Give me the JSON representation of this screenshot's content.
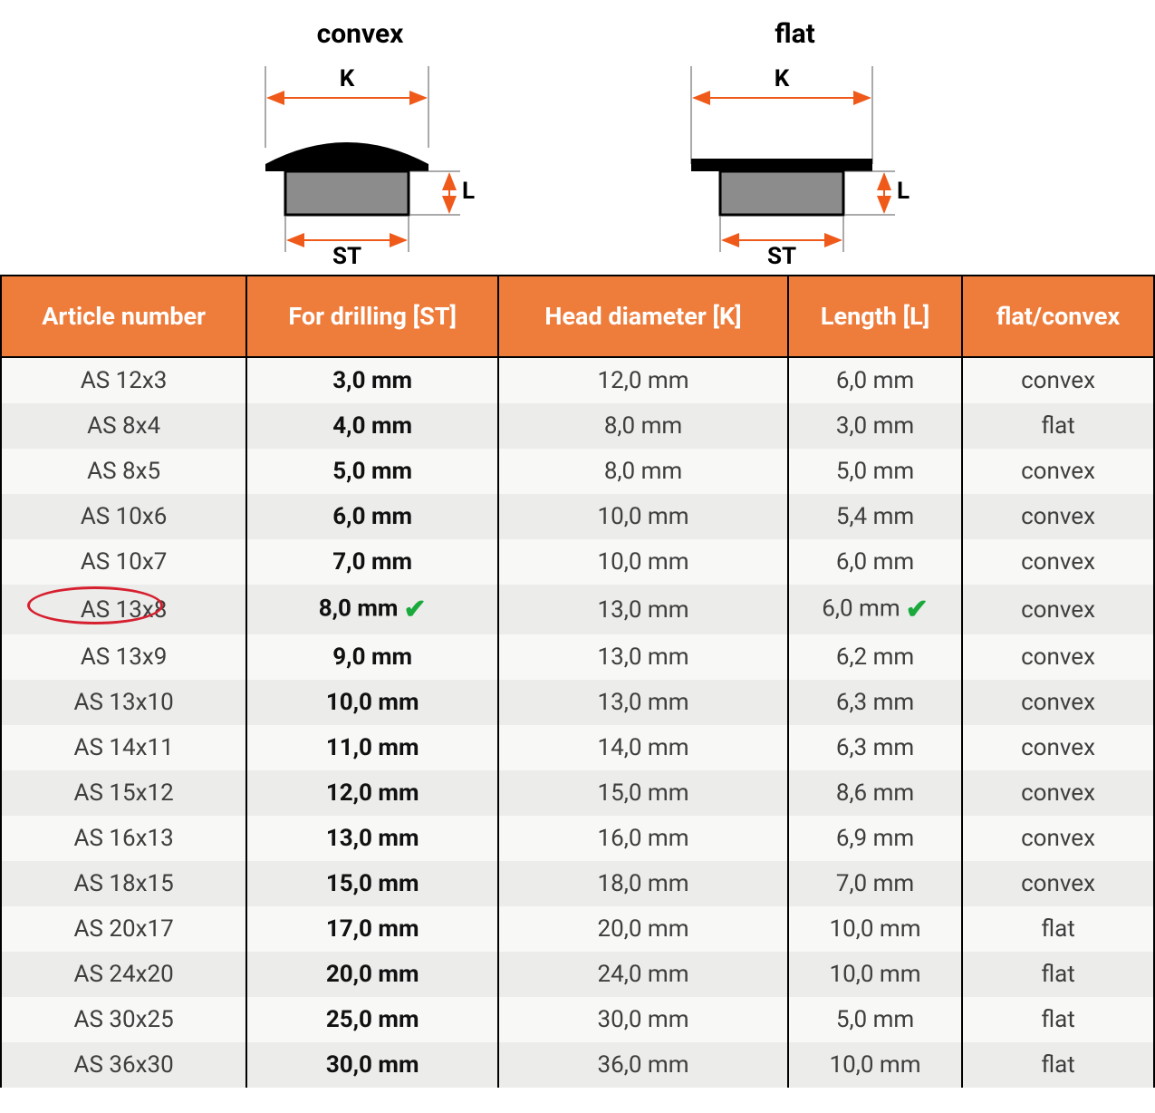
{
  "diagrams": {
    "convex": {
      "title": "convex",
      "K": "K",
      "L": "L",
      "ST": "ST"
    },
    "flat": {
      "title": "flat",
      "K": "K",
      "L": "L",
      "ST": "ST"
    }
  },
  "diagram_style": {
    "arrow_color": "#ef5a1a",
    "guide_color": "#555555",
    "cap_fill": "#000000",
    "shaft_fill": "#8c8c8c",
    "label_color": "#000000",
    "label_fontsize": 26,
    "title_fontsize": 30
  },
  "table": {
    "header_bg": "#ee7c3b",
    "header_fg": "#ffffff",
    "row_odd_bg": "#f8f8f7",
    "row_even_bg": "#ececeb",
    "border_color": "#000000",
    "highlight_color": "#d6202f",
    "check_color": "#1aaa3c",
    "columns": [
      "Article number",
      "For drilling [ST]",
      "Head diameter [K]",
      "Length [L]",
      "flat/convex"
    ],
    "highlighted_row_index": 5,
    "rows": [
      {
        "article": "AS 12x3",
        "st": "3,0 mm",
        "k": "12,0 mm",
        "l": "6,0 mm",
        "shape": "convex"
      },
      {
        "article": "AS 8x4",
        "st": "4,0 mm",
        "k": "8,0 mm",
        "l": "3,0 mm",
        "shape": "flat"
      },
      {
        "article": "AS 8x5",
        "st": "5,0 mm",
        "k": "8,0 mm",
        "l": "5,0 mm",
        "shape": "convex"
      },
      {
        "article": "AS 10x6",
        "st": "6,0 mm",
        "k": "10,0 mm",
        "l": "5,4 mm",
        "shape": "convex"
      },
      {
        "article": "AS 10x7",
        "st": "7,0 mm",
        "k": "10,0 mm",
        "l": "6,0 mm",
        "shape": "convex"
      },
      {
        "article": "AS 13x8",
        "st": "8,0 mm",
        "k": "13,0 mm",
        "l": "6,0 mm",
        "shape": "convex",
        "st_check": true,
        "l_check": true
      },
      {
        "article": "AS 13x9",
        "st": "9,0 mm",
        "k": "13,0 mm",
        "l": "6,2 mm",
        "shape": "convex"
      },
      {
        "article": "AS 13x10",
        "st": "10,0 mm",
        "k": "13,0 mm",
        "l": "6,3 mm",
        "shape": "convex"
      },
      {
        "article": "AS 14x11",
        "st": "11,0 mm",
        "k": "14,0 mm",
        "l": "6,3 mm",
        "shape": "convex"
      },
      {
        "article": "AS 15x12",
        "st": "12,0 mm",
        "k": "15,0 mm",
        "l": "8,6 mm",
        "shape": "convex"
      },
      {
        "article": "AS 16x13",
        "st": "13,0 mm",
        "k": "16,0 mm",
        "l": "6,9 mm",
        "shape": "convex"
      },
      {
        "article": "AS 18x15",
        "st": "15,0 mm",
        "k": "18,0 mm",
        "l": "7,0 mm",
        "shape": "convex"
      },
      {
        "article": "AS 20x17",
        "st": "17,0 mm",
        "k": "20,0 mm",
        "l": "10,0 mm",
        "shape": "flat"
      },
      {
        "article": "AS 24x20",
        "st": "20,0 mm",
        "k": "24,0 mm",
        "l": "10,0 mm",
        "shape": "flat"
      },
      {
        "article": "AS 30x25",
        "st": "25,0 mm",
        "k": "30,0 mm",
        "l": "5,0 mm",
        "shape": "flat"
      },
      {
        "article": "AS 36x30",
        "st": "30,0 mm",
        "k": "36,0 mm",
        "l": "10,0 mm",
        "shape": "flat"
      }
    ]
  }
}
